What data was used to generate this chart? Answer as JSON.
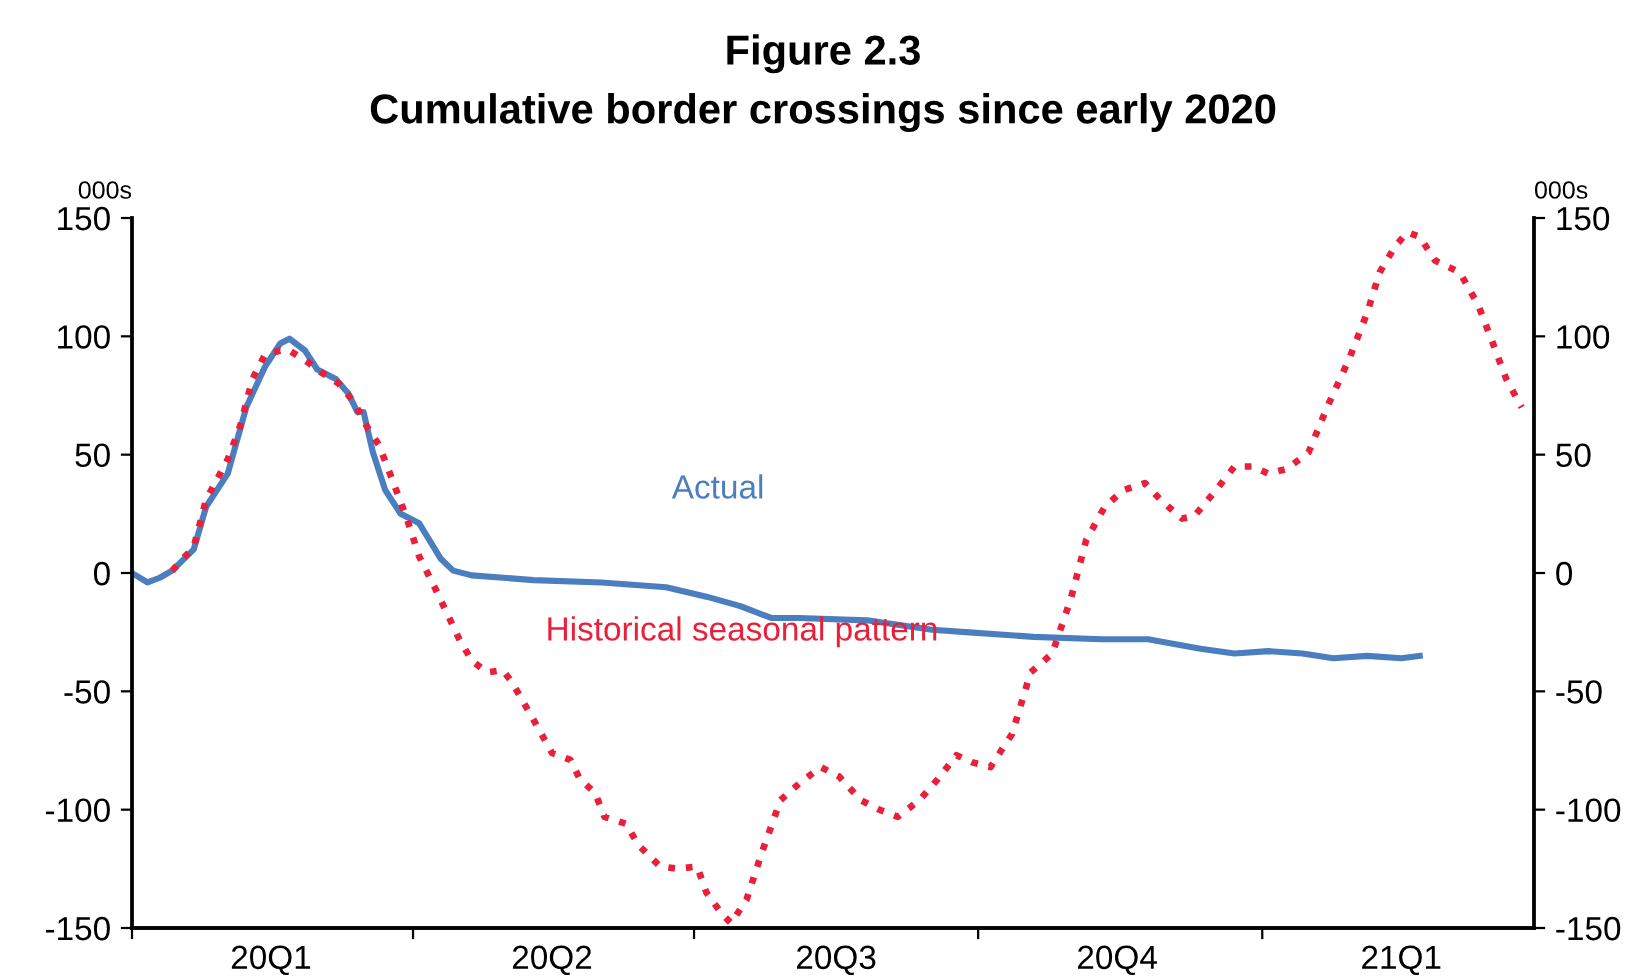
{
  "chart_data": {
    "type": "line",
    "title": "Figure 2.3",
    "subtitle": "Cumulative border crossings since early 2020",
    "ylabel": "000s",
    "y2label": "000s",
    "xlim": [
      "2020-01-01",
      "2021-03-30"
    ],
    "xticks": [
      {
        "value": "2020-01-01",
        "label": null
      },
      {
        "value": "2020-02-15",
        "label": "20Q1"
      },
      {
        "value": "2020-04-01",
        "label": null
      },
      {
        "value": "2020-05-16",
        "label": "20Q2"
      },
      {
        "value": "2020-07-01",
        "label": null
      },
      {
        "value": "2020-08-16",
        "label": "20Q3"
      },
      {
        "value": "2020-10-01",
        "label": null
      },
      {
        "value": "2020-11-15",
        "label": "20Q4"
      },
      {
        "value": "2021-01-01",
        "label": null
      },
      {
        "value": "2021-02-15",
        "label": "21Q1"
      }
    ],
    "ylim": [
      -150,
      150
    ],
    "yticks": [
      -150,
      -100,
      -50,
      0,
      50,
      100,
      150
    ],
    "y2lim": [
      -150,
      150
    ],
    "y2ticks": [
      -150,
      -100,
      -50,
      0,
      50,
      100,
      150
    ],
    "grid": false,
    "legend": false,
    "series": [
      {
        "name": "Actual",
        "color": "#4a7ebf",
        "line_style": "solid",
        "x": [
          "2020-01-01",
          "2020-01-06",
          "2020-01-10",
          "2020-01-14",
          "2020-01-21",
          "2020-01-25",
          "2020-02-01",
          "2020-02-07",
          "2020-02-13",
          "2020-02-18",
          "2020-02-21",
          "2020-02-26",
          "2020-03-01",
          "2020-03-07",
          "2020-03-11",
          "2020-03-14",
          "2020-03-16",
          "2020-03-19",
          "2020-03-23",
          "2020-03-28",
          "2020-04-03",
          "2020-04-10",
          "2020-04-14",
          "2020-04-20",
          "2020-05-10",
          "2020-06-01",
          "2020-06-22",
          "2020-07-05",
          "2020-07-16",
          "2020-07-26",
          "2020-08-04",
          "2020-08-26",
          "2020-09-16",
          "2020-09-27",
          "2020-10-19",
          "2020-11-10",
          "2020-11-25",
          "2020-12-12",
          "2020-12-23",
          "2021-01-03",
          "2021-01-14",
          "2021-01-24",
          "2021-02-04",
          "2021-02-15",
          "2021-02-21"
        ],
        "values": [
          0,
          -4,
          -2,
          1,
          10,
          28,
          42,
          70,
          87,
          97,
          99,
          94,
          86,
          82,
          76,
          68,
          68,
          51,
          35,
          25,
          21,
          6,
          1,
          -1,
          -3,
          -4,
          -6,
          -10,
          -14,
          -19,
          -19,
          -20,
          -24,
          -25,
          -27,
          -28,
          -28,
          -32,
          -34,
          -33,
          -34,
          -36,
          -35,
          -36,
          -35
        ]
      },
      {
        "name": "Historical seasonal pattern",
        "color": "#e8203a",
        "line_style": "dotted",
        "x": [
          "2020-01-14",
          "2020-01-21",
          "2020-01-25",
          "2020-02-01",
          "2020-02-05",
          "2020-02-09",
          "2020-02-13",
          "2020-02-18",
          "2020-02-21",
          "2020-02-27",
          "2020-03-02",
          "2020-03-08",
          "2020-03-13",
          "2020-03-17",
          "2020-03-21",
          "2020-03-26",
          "2020-03-30",
          "2020-04-03",
          "2020-04-08",
          "2020-04-12",
          "2020-04-16",
          "2020-04-20",
          "2020-04-25",
          "2020-04-30",
          "2020-05-03",
          "2020-05-10",
          "2020-05-16",
          "2020-05-22",
          "2020-05-25",
          "2020-05-30",
          "2020-06-02",
          "2020-06-09",
          "2020-06-13",
          "2020-06-20",
          "2020-06-26",
          "2020-07-02",
          "2020-07-05",
          "2020-07-10",
          "2020-07-13",
          "2020-07-18",
          "2020-07-23",
          "2020-07-29",
          "2020-08-04",
          "2020-08-11",
          "2020-08-17",
          "2020-08-24",
          "2020-08-30",
          "2020-09-05",
          "2020-09-12",
          "2020-09-18",
          "2020-09-24",
          "2020-09-29",
          "2020-10-05",
          "2020-10-12",
          "2020-10-18",
          "2020-10-25",
          "2020-10-31",
          "2020-11-05",
          "2020-11-11",
          "2020-11-17",
          "2020-11-24",
          "2020-11-29",
          "2020-12-06",
          "2020-12-10",
          "2020-12-17",
          "2020-12-23",
          "2020-12-29",
          "2021-01-03",
          "2021-01-09",
          "2021-01-16",
          "2021-01-22",
          "2021-01-29",
          "2021-02-04",
          "2021-02-08",
          "2021-02-13",
          "2021-02-17",
          "2021-02-21",
          "2021-02-26",
          "2021-03-06",
          "2021-03-12",
          "2021-03-17",
          "2021-03-21",
          "2021-03-26"
        ],
        "values": [
          1,
          11,
          31,
          48,
          62,
          82,
          92,
          94,
          94,
          89,
          85,
          80,
          72,
          62,
          54,
          37,
          23,
          7,
          -6,
          -17,
          -28,
          -37,
          -42,
          -41,
          -46,
          -62,
          -76,
          -79,
          -87,
          -93,
          -103,
          -106,
          -115,
          -124,
          -125,
          -124,
          -135,
          -144,
          -148,
          -138,
          -118,
          -96,
          -89,
          -82,
          -86,
          -96,
          -100,
          -103,
          -96,
          -87,
          -77,
          -80,
          -82,
          -68,
          -42,
          -34,
          -11,
          14,
          28,
          35,
          38,
          31,
          23,
          24,
          35,
          45,
          45,
          42,
          44,
          51,
          70,
          90,
          110,
          127,
          138,
          144,
          142,
          132,
          127,
          113,
          96,
          82,
          70
        ]
      }
    ]
  }
}
